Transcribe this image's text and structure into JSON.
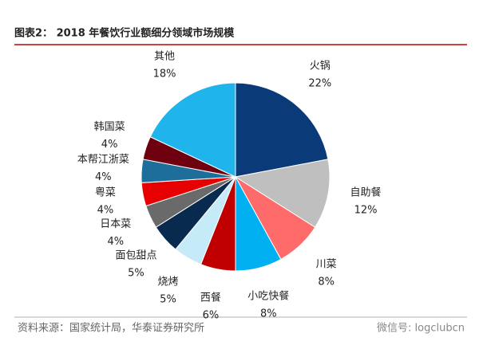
{
  "chart_data": {
    "type": "pie",
    "title": "图表2： 2018 年餐饮行业额细分领域市场规模",
    "categories": [
      "火锅",
      "自助餐",
      "川菜",
      "小吃快餐",
      "西餐",
      "烧烤",
      "面包甜点",
      "日本菜",
      "粤菜",
      "本帮江浙菜",
      "韩国菜",
      "其他"
    ],
    "values": [
      22,
      12,
      8,
      8,
      6,
      5,
      5,
      4,
      4,
      4,
      4,
      18
    ],
    "value_labels": [
      "22%",
      "12%",
      "8%",
      "8%",
      "6%",
      "5%",
      "5%",
      "4%",
      "4%",
      "4%",
      "4%",
      "18%"
    ],
    "colors": [
      "#0a3a78",
      "#bfbfbf",
      "#ff6b6b",
      "#00b0f0",
      "#c00000",
      "#c5eaf8",
      "#072a4e",
      "#6a6a6a",
      "#e60000",
      "#1e6e9c",
      "#6e0010",
      "#1fb4ec"
    ],
    "source": "资料来源：国家统计局，华泰证券研究所",
    "watermark": "微信号: logclubcn"
  }
}
